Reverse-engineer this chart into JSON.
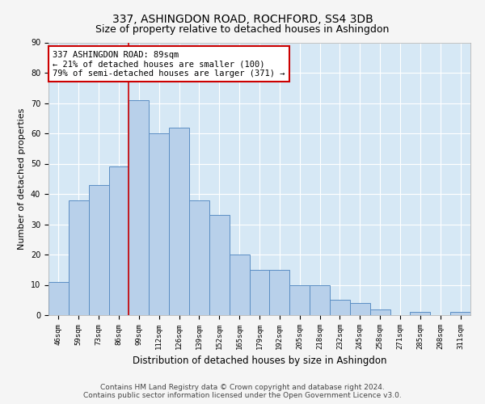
{
  "title": "337, ASHINGDON ROAD, ROCHFORD, SS4 3DB",
  "subtitle": "Size of property relative to detached houses in Ashingdon",
  "xlabel": "Distribution of detached houses by size in Ashingdon",
  "ylabel": "Number of detached properties",
  "categories": [
    "46sqm",
    "59sqm",
    "73sqm",
    "86sqm",
    "99sqm",
    "112sqm",
    "126sqm",
    "139sqm",
    "152sqm",
    "165sqm",
    "179sqm",
    "192sqm",
    "205sqm",
    "218sqm",
    "232sqm",
    "245sqm",
    "258sqm",
    "271sqm",
    "285sqm",
    "298sqm",
    "311sqm"
  ],
  "values": [
    11,
    38,
    43,
    49,
    71,
    60,
    62,
    38,
    33,
    20,
    15,
    15,
    10,
    10,
    5,
    4,
    2,
    0,
    1,
    0,
    1
  ],
  "bar_color": "#b8d0ea",
  "bar_edge_color": "#5b8ec4",
  "background_color": "#d6e8f5",
  "grid_color": "#ffffff",
  "vline_x": 4.0,
  "vline_color": "#cc0000",
  "annotation_text": "337 ASHINGDON ROAD: 89sqm\n← 21% of detached houses are smaller (100)\n79% of semi-detached houses are larger (371) →",
  "annotation_box_color": "#cc0000",
  "ylim": [
    0,
    90
  ],
  "yticks": [
    0,
    10,
    20,
    30,
    40,
    50,
    60,
    70,
    80,
    90
  ],
  "footer": "Contains HM Land Registry data © Crown copyright and database right 2024.\nContains public sector information licensed under the Open Government Licence v3.0.",
  "title_fontsize": 10,
  "subtitle_fontsize": 9,
  "xlabel_fontsize": 8.5,
  "ylabel_fontsize": 8,
  "tick_fontsize": 6.5,
  "annotation_fontsize": 7.5,
  "footer_fontsize": 6.5
}
